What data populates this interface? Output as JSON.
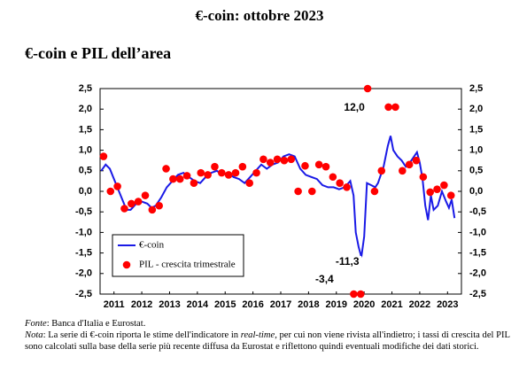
{
  "page_title": "€-coin: ottobre 2023",
  "chart_data": {
    "type": "line_scatter",
    "title": "€-coin e PIL dell’area",
    "xlim": [
      2011,
      2024
    ],
    "xticks": [
      {
        "value": 2011.5,
        "label": "2011"
      },
      {
        "value": 2012.5,
        "label": "2012"
      },
      {
        "value": 2013.5,
        "label": "2013"
      },
      {
        "value": 2014.5,
        "label": "2014"
      },
      {
        "value": 2015.5,
        "label": "2015"
      },
      {
        "value": 2016.5,
        "label": "2016"
      },
      {
        "value": 2017.5,
        "label": "2017"
      },
      {
        "value": 2018.5,
        "label": "2018"
      },
      {
        "value": 2019.5,
        "label": "2019"
      },
      {
        "value": 2020.5,
        "label": "2020"
      },
      {
        "value": 2021.5,
        "label": "2021"
      },
      {
        "value": 2022.5,
        "label": "2022"
      },
      {
        "value": 2023.5,
        "label": "2023"
      }
    ],
    "ylim": [
      -2.5,
      2.5
    ],
    "yticks": [
      {
        "value": 2.5,
        "label": "2,5"
      },
      {
        "value": 2.0,
        "label": "2,0"
      },
      {
        "value": 1.5,
        "label": "1,5"
      },
      {
        "value": 1.0,
        "label": "1,0"
      },
      {
        "value": 0.5,
        "label": "0,5"
      },
      {
        "value": 0,
        "label": "0,0"
      },
      {
        "value": -0.5,
        "label": "-0,5"
      },
      {
        "value": -1.0,
        "label": "-1,0"
      },
      {
        "value": -1.5,
        "label": "-1,5"
      },
      {
        "value": -2.0,
        "label": "-2,0"
      },
      {
        "value": -2.5,
        "label": "-2,5"
      }
    ],
    "y2lim": [
      -2.5,
      2.5
    ],
    "y2ticks": [
      {
        "value": 2.5,
        "label": "2,5"
      },
      {
        "value": 2.0,
        "label": "2,0"
      },
      {
        "value": 1.5,
        "label": "1,5"
      },
      {
        "value": 1.0,
        "label": "1,0"
      },
      {
        "value": 0.5,
        "label": "0,5"
      },
      {
        "value": 0,
        "label": "0,0"
      },
      {
        "value": -0.5,
        "label": "-0,5"
      },
      {
        "value": -1.0,
        "label": "-1,0"
      },
      {
        "value": -1.5,
        "label": "-1,5"
      },
      {
        "value": -2.0,
        "label": "-2,0"
      },
      {
        "value": -2.5,
        "label": "-2,5"
      }
    ],
    "series": [
      {
        "name": "€-coin",
        "type": "line",
        "color": "#1a1ae6",
        "x": [
          2011.04,
          2011.2,
          2011.35,
          2011.5,
          2011.65,
          2011.8,
          2011.95,
          2012.1,
          2012.3,
          2012.5,
          2012.7,
          2012.85,
          2013.0,
          2013.2,
          2013.4,
          2013.6,
          2013.8,
          2014.0,
          2014.2,
          2014.4,
          2014.6,
          2014.8,
          2015.0,
          2015.2,
          2015.4,
          2015.6,
          2015.8,
          2016.0,
          2016.2,
          2016.4,
          2016.6,
          2016.8,
          2017.0,
          2017.2,
          2017.4,
          2017.6,
          2017.8,
          2018.0,
          2018.2,
          2018.4,
          2018.6,
          2018.8,
          2019.0,
          2019.2,
          2019.4,
          2019.6,
          2019.8,
          2020.0,
          2020.12,
          2020.2,
          2020.3,
          2020.4,
          2020.5,
          2020.6,
          2020.75,
          2020.9,
          2021.0,
          2021.2,
          2021.35,
          2021.45,
          2021.55,
          2021.7,
          2021.85,
          2022.0,
          2022.15,
          2022.3,
          2022.4,
          2022.5,
          2022.6,
          2022.7,
          2022.8,
          2022.9,
          2023.0,
          2023.15,
          2023.3,
          2023.45,
          2023.55,
          2023.65,
          2023.75
        ],
        "values": [
          0.5,
          0.65,
          0.55,
          0.3,
          0.05,
          -0.2,
          -0.45,
          -0.45,
          -0.3,
          -0.25,
          -0.3,
          -0.4,
          -0.35,
          -0.15,
          0.1,
          0.25,
          0.4,
          0.45,
          0.35,
          0.25,
          0.2,
          0.35,
          0.45,
          0.5,
          0.4,
          0.45,
          0.35,
          0.3,
          0.2,
          0.35,
          0.5,
          0.65,
          0.55,
          0.65,
          0.7,
          0.85,
          0.9,
          0.85,
          0.55,
          0.4,
          0.35,
          0.3,
          0.15,
          0.1,
          0.1,
          0.05,
          0.1,
          0.25,
          -0.1,
          -1.0,
          -1.35,
          -1.6,
          -1.1,
          0.2,
          0.15,
          0.1,
          0.2,
          0.6,
          1.1,
          1.35,
          1.0,
          0.85,
          0.75,
          0.6,
          0.7,
          0.85,
          0.95,
          0.7,
          0.3,
          -0.35,
          -0.7,
          -0.1,
          -0.45,
          -0.35,
          0.0,
          -0.25,
          -0.4,
          -0.2,
          -0.65
        ]
      },
      {
        "name": "PIL - crescita trimestrale",
        "type": "scatter",
        "color": "#ff0000",
        "x": [
          2011.125,
          2011.375,
          2011.625,
          2011.875,
          2012.125,
          2012.375,
          2012.625,
          2012.875,
          2013.125,
          2013.375,
          2013.625,
          2013.875,
          2014.125,
          2014.375,
          2014.625,
          2014.875,
          2015.125,
          2015.375,
          2015.625,
          2015.875,
          2016.125,
          2016.375,
          2016.625,
          2016.875,
          2017.125,
          2017.375,
          2017.625,
          2017.875,
          2018.125,
          2018.375,
          2018.625,
          2018.875,
          2019.125,
          2019.375,
          2019.625,
          2019.875,
          2020.125,
          2020.375,
          2020.625,
          2020.875,
          2021.125,
          2021.375,
          2021.625,
          2021.875,
          2022.125,
          2022.375,
          2022.625,
          2022.875,
          2023.125,
          2023.375,
          2023.625
        ],
        "values": [
          0.85,
          0.0,
          0.12,
          -0.42,
          -0.3,
          -0.25,
          -0.1,
          -0.45,
          -0.35,
          0.55,
          0.3,
          0.3,
          0.38,
          0.2,
          0.45,
          0.4,
          0.6,
          0.45,
          0.4,
          0.45,
          0.6,
          0.2,
          0.45,
          0.78,
          0.7,
          0.78,
          0.75,
          0.78,
          0.0,
          0.62,
          0.0,
          0.65,
          0.6,
          0.35,
          0.2,
          0.1,
          -3.4,
          -11.3,
          12.0,
          0.0,
          0.5,
          2.05,
          2.05,
          0.5,
          0.65,
          0.75,
          0.35,
          -0.02,
          0.05,
          0.15,
          -0.1
        ],
        "value_labels": [
          null,
          null,
          null,
          null,
          null,
          null,
          null,
          null,
          null,
          null,
          null,
          null,
          null,
          null,
          null,
          null,
          null,
          null,
          null,
          null,
          null,
          null,
          null,
          null,
          null,
          null,
          null,
          null,
          null,
          null,
          null,
          null,
          null,
          null,
          null,
          null,
          "-3,4",
          "-11,3",
          "12,0",
          null,
          null,
          null,
          null,
          null,
          null,
          null,
          null,
          null,
          null,
          null,
          null
        ]
      }
    ]
  },
  "footnotes": {
    "source": [
      "Fonte",
      ": Banca d'Italia e Eurostat."
    ],
    "note": [
      "Nota",
      ": La serie di €-coin riporta le stime dell'indicatore in ",
      "real-time",
      ", per cui non viene rivista all'indietro; i tassi di crescita del PIL sono calcolati sulla base della serie più recente diffusa da Eurostat e riflettono quindi eventuali modifiche dei dati storici."
    ]
  }
}
